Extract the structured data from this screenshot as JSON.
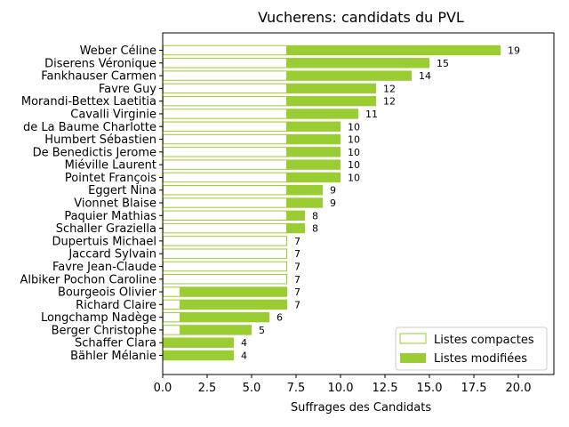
{
  "chart_data": {
    "type": "bar",
    "orientation": "horizontal",
    "stacked": true,
    "title": "Vucherens: candidats du PVL",
    "xlabel": "Suffrages des Candidats",
    "ylabel": "",
    "xlim": [
      0,
      22
    ],
    "xticks": [
      0,
      2.5,
      5,
      7.5,
      10,
      12.5,
      15,
      17.5,
      20
    ],
    "xtick_labels": [
      "0.0",
      "2.5",
      "5.0",
      "7.5",
      "10.0",
      "12.5",
      "15.0",
      "17.5",
      "20.0"
    ],
    "legend_position": "lower-right",
    "categories": [
      "Weber Céline",
      "Diserens Véronique",
      "Fankhauser Carmen",
      "Favre Guy",
      "Morandi-Bettex Laetitia",
      "Cavalli Virginie",
      "de La Baume Charlotte",
      "Humbert Sébastien",
      "De Benedictis Jerome",
      "Miéville Laurent",
      "Pointet François",
      "Eggert Nina",
      "Vionnet Blaise",
      "Paquier Mathias",
      "Schaller Graziella",
      "Dupertuis Michael",
      "Jaccard Sylvain",
      "Favre Jean-Claude",
      "Albiker Pochon Caroline",
      "Bourgeois Olivier",
      "Richard Claire",
      "Longchamp Nadège",
      "Berger Christophe",
      "Schaffer Clara",
      "Bähler Mélanie"
    ],
    "series": [
      {
        "name": "Listes compactes",
        "color": "#9acd32",
        "style": "outline",
        "values": [
          7,
          7,
          7,
          7,
          7,
          7,
          7,
          7,
          7,
          7,
          7,
          7,
          7,
          7,
          7,
          7,
          7,
          7,
          7,
          1,
          1,
          1,
          1,
          0,
          0
        ]
      },
      {
        "name": "Listes modifiées",
        "color": "#9acd32",
        "style": "filled",
        "values": [
          12,
          8,
          7,
          5,
          5,
          4,
          3,
          3,
          3,
          3,
          3,
          2,
          2,
          1,
          1,
          0,
          0,
          0,
          0,
          6,
          6,
          5,
          4,
          4,
          4
        ]
      }
    ],
    "totals": [
      19,
      15,
      14,
      12,
      12,
      11,
      10,
      10,
      10,
      10,
      10,
      9,
      9,
      8,
      8,
      7,
      7,
      7,
      7,
      7,
      7,
      6,
      5,
      4,
      4
    ]
  }
}
